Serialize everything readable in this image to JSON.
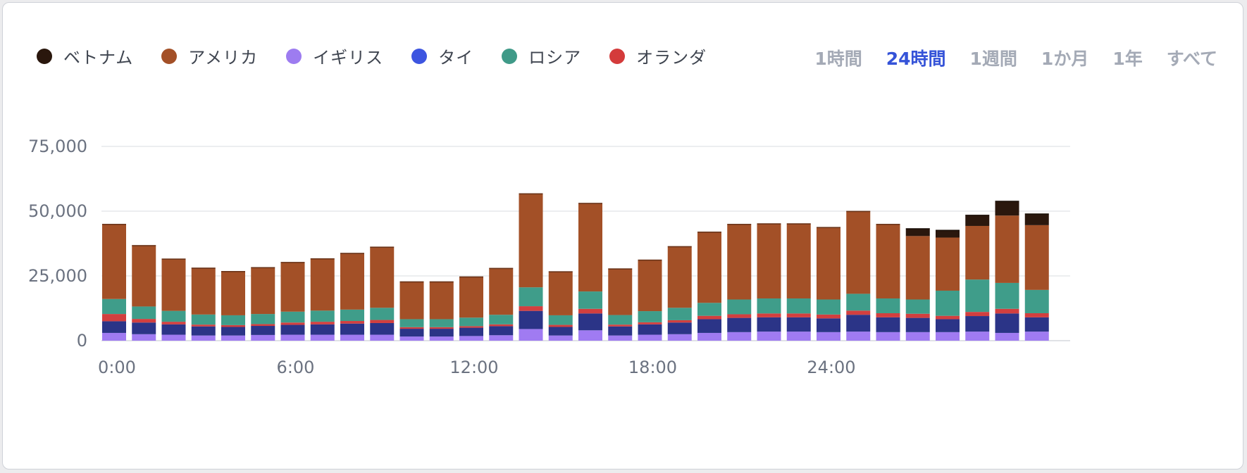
{
  "legend": [
    {
      "label": "ベトナム",
      "color": "#2a170d"
    },
    {
      "label": "アメリカ",
      "color": "#a35027"
    },
    {
      "label": "イギリス",
      "color": "#9d7cf0"
    },
    {
      "label": "タイ",
      "color": "#3d55e0"
    },
    {
      "label": "ロシア",
      "color": "#3f9a88"
    },
    {
      "label": "オランダ",
      "color": "#d43b3b"
    }
  ],
  "ranges": [
    {
      "label": "1時間",
      "active": false
    },
    {
      "label": "24時間",
      "active": true
    },
    {
      "label": "1週間",
      "active": false
    },
    {
      "label": "1か月",
      "active": false
    },
    {
      "label": "1年",
      "active": false
    },
    {
      "label": "すべて",
      "active": false
    }
  ],
  "chart_data": {
    "type": "bar",
    "stacked": true,
    "ylim": [
      0,
      75000
    ],
    "y_ticks": [
      0,
      25000,
      50000,
      75000
    ],
    "y_tick_labels": [
      "0",
      "25,000",
      "50,000",
      "75,000"
    ],
    "x_ticks": [
      0,
      6,
      12,
      18,
      24
    ],
    "x_tick_labels": [
      "0:00",
      "6:00",
      "12:00",
      "18:00",
      "24:00"
    ],
    "x": [
      0,
      1,
      2,
      3,
      4,
      5,
      6,
      7,
      8,
      9,
      10,
      11,
      12,
      13,
      14,
      15,
      16,
      17,
      18,
      19,
      20,
      21,
      22,
      23,
      24,
      25,
      26,
      27,
      28,
      29,
      30,
      31
    ],
    "bar_series_colors": {
      "イギリス": "#a07bf2",
      "タイ": "#2b3487",
      "オランダ": "#d23f3f",
      "ロシア": "#3f9d8a",
      "アメリカ": "#a35027",
      "ベトナム": "#2a170d"
    },
    "series": [
      {
        "name": "イギリス",
        "values": [
          3000,
          2500,
          2300,
          2000,
          2000,
          2200,
          2300,
          2300,
          2300,
          2300,
          1600,
          1600,
          1800,
          2100,
          4500,
          2000,
          4000,
          2000,
          2300,
          2500,
          3000,
          3300,
          3500,
          3500,
          3300,
          3500,
          3300,
          3300,
          3300,
          3500,
          3000,
          3500
        ]
      },
      {
        "name": "タイ",
        "values": [
          4500,
          4500,
          4000,
          3500,
          3300,
          3500,
          3800,
          4000,
          4300,
          4500,
          3000,
          3000,
          3200,
          3500,
          7000,
          3300,
          6500,
          3500,
          4000,
          4500,
          5300,
          5500,
          5500,
          5500,
          5300,
          6500,
          5700,
          5500,
          5000,
          6000,
          7500,
          5500
        ]
      },
      {
        "name": "オランダ",
        "values": [
          2800,
          1400,
          1000,
          700,
          700,
          700,
          900,
          1000,
          1000,
          1200,
          600,
          600,
          600,
          700,
          1800,
          800,
          1800,
          700,
          800,
          900,
          1300,
          1400,
          1500,
          1500,
          1500,
          1600,
          1600,
          1600,
          1300,
          1600,
          1800,
          1600
        ]
      },
      {
        "name": "ロシア",
        "values": [
          5800,
          4800,
          4200,
          3900,
          3800,
          3900,
          4200,
          4300,
          4400,
          4700,
          3100,
          3100,
          3300,
          3700,
          7300,
          3700,
          6700,
          3700,
          4300,
          4800,
          5000,
          5700,
          5800,
          5800,
          5800,
          6500,
          5700,
          5500,
          9700,
          12500,
          10000,
          9000
        ]
      },
      {
        "name": "アメリカ",
        "values": [
          29000,
          23700,
          20200,
          18100,
          17100,
          18100,
          19200,
          20200,
          21900,
          23600,
          14600,
          14600,
          15900,
          18100,
          36300,
          17000,
          34200,
          18000,
          19900,
          23800,
          27500,
          29200,
          29000,
          29000,
          28000,
          32000,
          28800,
          24500,
          20500,
          20700,
          26000,
          25000
        ]
      },
      {
        "name": "ベトナム",
        "values": [
          0,
          0,
          0,
          0,
          0,
          0,
          0,
          0,
          0,
          0,
          0,
          0,
          0,
          0,
          0,
          0,
          0,
          0,
          0,
          0,
          0,
          0,
          0,
          0,
          0,
          0,
          0,
          3000,
          3000,
          4300,
          5700,
          4500
        ]
      }
    ]
  }
}
